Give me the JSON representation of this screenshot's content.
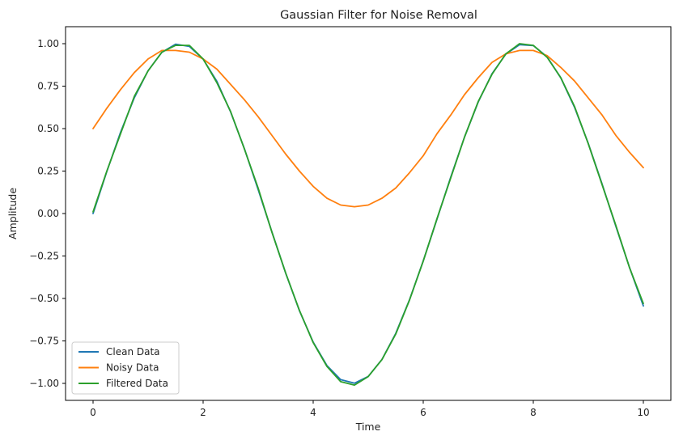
{
  "chart_data": {
    "type": "line",
    "title": "Gaussian Filter for Noise Removal",
    "xlabel": "Time",
    "ylabel": "Amplitude",
    "xlim": [
      -0.5,
      10.5
    ],
    "ylim": [
      -1.1,
      1.1
    ],
    "x_ticks": [
      0,
      2,
      4,
      6,
      8,
      10
    ],
    "x_tick_labels": [
      "0",
      "2",
      "4",
      "6",
      "8",
      "10"
    ],
    "y_ticks": [
      1.0,
      0.75,
      0.5,
      0.25,
      0.0,
      -0.25,
      -0.5,
      -0.75,
      -1.0
    ],
    "y_tick_labels": [
      "1.00",
      "0.75",
      "0.50",
      "0.25",
      "0.00",
      "−0.25",
      "−0.50",
      "−0.75",
      "−1.00"
    ],
    "grid": false,
    "legend_position": "lower-left",
    "x": [
      0,
      0.25,
      0.5,
      0.75,
      1.0,
      1.25,
      1.5,
      1.75,
      2.0,
      2.25,
      2.5,
      2.75,
      3.0,
      3.25,
      3.5,
      3.75,
      4.0,
      4.25,
      4.5,
      4.75,
      5.0,
      5.25,
      5.5,
      5.75,
      6.0,
      6.25,
      6.5,
      6.75,
      7.0,
      7.25,
      7.5,
      7.75,
      8.0,
      8.25,
      8.5,
      8.75,
      9.0,
      9.25,
      9.5,
      9.75,
      10.0
    ],
    "series": [
      {
        "name": "Clean Data",
        "color": "#1f77b4",
        "values": [
          0,
          0.247,
          0.479,
          0.682,
          0.841,
          0.949,
          0.997,
          0.984,
          0.909,
          0.778,
          0.598,
          0.382,
          0.141,
          -0.108,
          -0.351,
          -0.572,
          -0.757,
          -0.895,
          -0.978,
          -0.999,
          -0.959,
          -0.859,
          -0.706,
          -0.508,
          -0.279,
          -0.033,
          0.215,
          0.45,
          0.657,
          0.823,
          0.938,
          0.994,
          0.989,
          0.923,
          0.798,
          0.625,
          0.412,
          0.174,
          -0.075,
          -0.319,
          -0.544
        ]
      },
      {
        "name": "Noisy Data",
        "color": "#ff7f0e",
        "values": [
          0.5,
          0.62,
          0.73,
          0.83,
          0.91,
          0.96,
          0.96,
          0.95,
          0.91,
          0.85,
          0.76,
          0.67,
          0.57,
          0.46,
          0.35,
          0.25,
          0.16,
          0.09,
          0.05,
          0.04,
          0.05,
          0.09,
          0.15,
          0.24,
          0.34,
          0.47,
          0.58,
          0.7,
          0.8,
          0.89,
          0.94,
          0.96,
          0.96,
          0.93,
          0.86,
          0.78,
          0.68,
          0.58,
          0.46,
          0.36,
          0.27
        ]
      },
      {
        "name": "Filtered Data",
        "color": "#2ca02c",
        "values": [
          0.01,
          0.25,
          0.47,
          0.69,
          0.84,
          0.95,
          0.99,
          0.99,
          0.91,
          0.77,
          0.6,
          0.38,
          0.15,
          -0.11,
          -0.35,
          -0.57,
          -0.76,
          -0.9,
          -0.99,
          -1.01,
          -0.96,
          -0.86,
          -0.71,
          -0.51,
          -0.28,
          -0.03,
          0.21,
          0.45,
          0.66,
          0.82,
          0.94,
          1.0,
          0.99,
          0.92,
          0.8,
          0.63,
          0.41,
          0.17,
          -0.07,
          -0.32,
          -0.53
        ]
      }
    ]
  }
}
